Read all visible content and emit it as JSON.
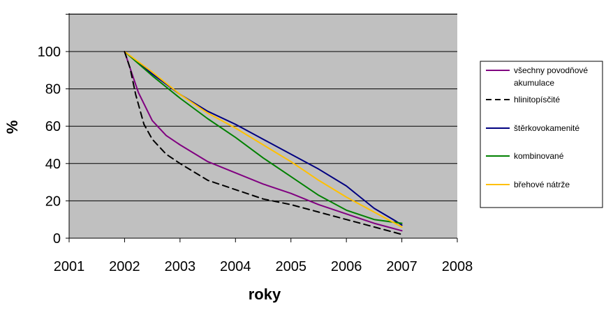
{
  "chart_data": {
    "type": "line",
    "title": "",
    "xlabel": "roky",
    "ylabel": "%",
    "xlim": [
      2001,
      2008
    ],
    "ylim": [
      0,
      100
    ],
    "ytick_labels_visible": [
      "0",
      "20",
      "40",
      "60",
      "80",
      "100"
    ],
    "x_ticks": [
      "2001",
      "2002",
      "2003",
      "2004",
      "2005",
      "2006",
      "2007",
      "2008"
    ],
    "grid": "horizontal",
    "plot_background": "#c0c0c0",
    "legend_position": "right",
    "series": [
      {
        "name": "všechny povodňové akumulace",
        "legend_lines": [
          "všechny povodňové",
          "akumulace"
        ],
        "color": "#800080",
        "dash": "solid",
        "x": [
          2002,
          2002.1,
          2002.25,
          2002.5,
          2002.75,
          2003,
          2003.5,
          2004,
          2004.5,
          2005,
          2005.5,
          2006,
          2006.5,
          2007
        ],
        "y": [
          100,
          91,
          78,
          63,
          55,
          50,
          41,
          35,
          29,
          24,
          18,
          13,
          8,
          4
        ]
      },
      {
        "name": "hlinitopísčité",
        "color": "#000000",
        "dash": "dashed",
        "x": [
          2002,
          2002.1,
          2002.2,
          2002.35,
          2002.5,
          2002.75,
          2003,
          2003.5,
          2004,
          2004.5,
          2005,
          2005.5,
          2006,
          2006.5,
          2007
        ],
        "y": [
          100,
          91,
          77,
          61,
          53,
          45,
          40,
          31,
          26,
          21,
          18,
          14,
          10,
          6,
          2
        ]
      },
      {
        "name": "štěrkovokamenité",
        "color": "#000080",
        "dash": "solid",
        "x": [
          2002,
          2002.5,
          2003,
          2003.5,
          2004,
          2004.5,
          2005,
          2005.5,
          2006,
          2006.5,
          2006.9,
          2007
        ],
        "y": [
          100,
          88,
          77,
          68,
          61,
          53,
          45,
          37,
          28,
          16,
          9,
          7
        ]
      },
      {
        "name": "kombinované",
        "color": "#008000",
        "dash": "solid",
        "x": [
          2002,
          2002.5,
          2003,
          2003.5,
          2004,
          2004.5,
          2005,
          2005.5,
          2006,
          2006.5,
          2007
        ],
        "y": [
          100,
          87,
          75,
          64,
          54,
          43,
          33,
          23,
          15,
          10,
          8
        ]
      },
      {
        "name": "břehové nátrže",
        "color": "#ffc000",
        "dash": "solid",
        "x": [
          2002,
          2002.5,
          2003,
          2003.5,
          2004,
          2004.5,
          2005,
          2005.5,
          2006,
          2006.5,
          2007
        ],
        "y": [
          100,
          89,
          77,
          67,
          59,
          50,
          41,
          31,
          22,
          14,
          6
        ]
      }
    ]
  }
}
